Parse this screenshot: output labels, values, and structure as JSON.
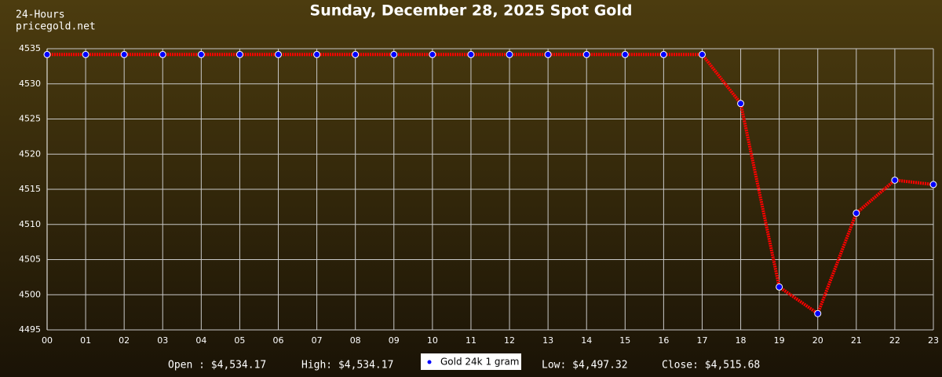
{
  "chart_data": {
    "type": "line",
    "title": "Sunday, December 28, 2025 Spot Gold",
    "header": [
      "24-Hours",
      "pricegold.net"
    ],
    "categories": [
      "00",
      "01",
      "02",
      "03",
      "04",
      "05",
      "06",
      "07",
      "08",
      "09",
      "10",
      "11",
      "12",
      "13",
      "14",
      "15",
      "16",
      "17",
      "18",
      "19",
      "20",
      "21",
      "22",
      "23"
    ],
    "series": [
      {
        "name": "Gold 24k 1 gram",
        "color": "#ff0000",
        "marker_color": "#0000ff",
        "values": [
          4534.17,
          4534.17,
          4534.17,
          4534.17,
          4534.17,
          4534.17,
          4534.17,
          4534.17,
          4534.17,
          4534.17,
          4534.17,
          4534.17,
          4534.17,
          4534.17,
          4534.17,
          4534.17,
          4534.17,
          4534.17,
          4527.2,
          4501.1,
          4497.32,
          4511.6,
          4516.3,
          4515.68
        ]
      }
    ],
    "ylim": [
      4495,
      4535
    ],
    "yticks": [
      4495,
      4500,
      4505,
      4510,
      4515,
      4520,
      4525,
      4530,
      4535
    ],
    "grid": true,
    "stats": [
      "Open : $4,534.17",
      "High: $4,534.17",
      "Low: $4,497.32",
      "Close: $4,515.68"
    ]
  }
}
